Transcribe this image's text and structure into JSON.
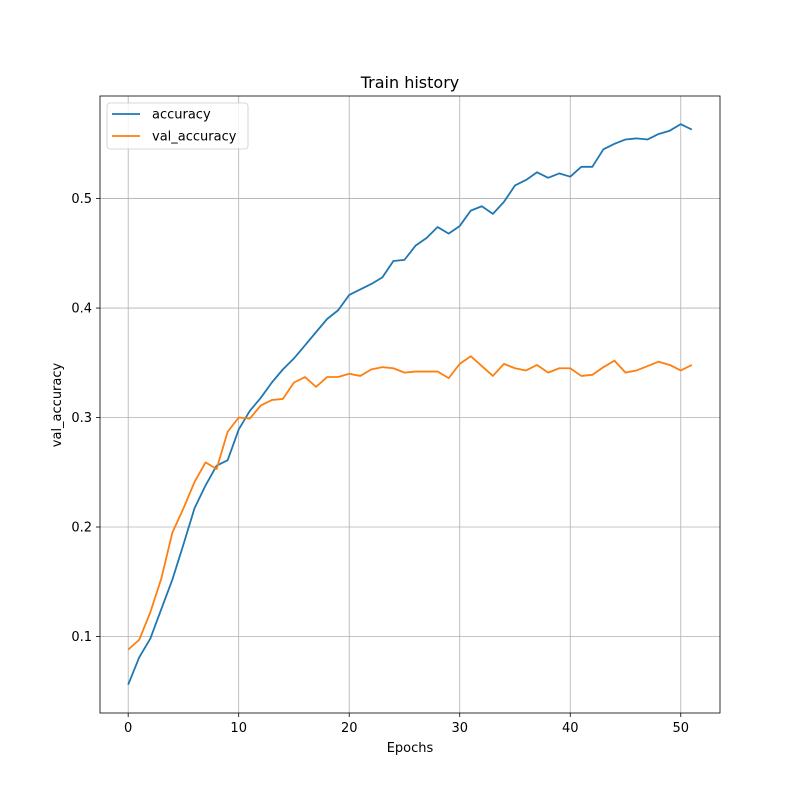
{
  "chart_data": {
    "type": "line",
    "title": "Train history",
    "xlabel": "Epochs",
    "ylabel": "val_accuracy",
    "xlim": [
      -2.55,
      53.55
    ],
    "ylim": [
      0.0301,
      0.5937
    ],
    "xticks": [
      0,
      10,
      20,
      30,
      40,
      50
    ],
    "yticks": [
      0.1,
      0.2,
      0.3,
      0.4,
      0.5
    ],
    "xtick_labels": [
      "0",
      "10",
      "20",
      "30",
      "40",
      "50"
    ],
    "ytick_labels": [
      "0.1",
      "0.2",
      "0.3",
      "0.4",
      "0.5"
    ],
    "grid": true,
    "legend_position": "upper-left",
    "x": [
      0,
      1,
      2,
      3,
      4,
      5,
      6,
      7,
      8,
      9,
      10,
      11,
      12,
      13,
      14,
      15,
      16,
      17,
      18,
      19,
      20,
      21,
      22,
      23,
      24,
      25,
      26,
      27,
      28,
      29,
      30,
      31,
      32,
      33,
      34,
      35,
      36,
      37,
      38,
      39,
      40,
      41,
      42,
      43,
      44,
      45,
      46,
      47,
      48,
      49,
      50,
      51
    ],
    "series": [
      {
        "name": "accuracy",
        "color": "#1f77b4",
        "values": [
          0.056,
          0.081,
          0.098,
          0.125,
          0.152,
          0.184,
          0.217,
          0.238,
          0.256,
          0.261,
          0.289,
          0.306,
          0.318,
          0.332,
          0.344,
          0.354,
          0.366,
          0.378,
          0.39,
          0.398,
          0.412,
          0.417,
          0.422,
          0.428,
          0.443,
          0.444,
          0.457,
          0.464,
          0.474,
          0.468,
          0.475,
          0.489,
          0.493,
          0.486,
          0.497,
          0.512,
          0.517,
          0.524,
          0.519,
          0.523,
          0.52,
          0.529,
          0.529,
          0.545,
          0.55,
          0.554,
          0.555,
          0.554,
          0.559,
          0.562,
          0.568,
          0.563
        ]
      },
      {
        "name": "val_accuracy",
        "color": "#ff7f0e",
        "values": [
          0.088,
          0.097,
          0.122,
          0.153,
          0.195,
          0.217,
          0.241,
          0.259,
          0.253,
          0.287,
          0.3,
          0.299,
          0.311,
          0.316,
          0.317,
          0.332,
          0.337,
          0.328,
          0.337,
          0.337,
          0.34,
          0.338,
          0.344,
          0.346,
          0.345,
          0.341,
          0.342,
          0.342,
          0.342,
          0.336,
          0.349,
          0.356,
          0.347,
          0.338,
          0.349,
          0.345,
          0.343,
          0.348,
          0.341,
          0.345,
          0.345,
          0.338,
          0.339,
          0.346,
          0.352,
          0.341,
          0.343,
          0.347,
          0.351,
          0.348,
          0.343,
          0.348
        ]
      }
    ]
  }
}
